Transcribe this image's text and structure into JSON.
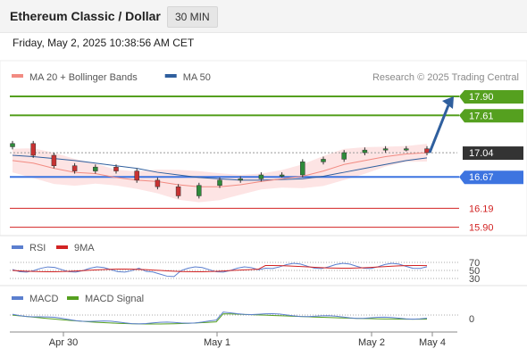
{
  "header": {
    "title": "Ethereum Classic / Dollar",
    "timeframe": "30 MIN",
    "datetime": "Friday, May 2, 2025 10:38:56 AM CET"
  },
  "legend_main": [
    {
      "label": "MA 20 + Bollinger Bands",
      "color": "#f28b82"
    },
    {
      "label": "MA 50",
      "color": "#2f5f9e"
    }
  ],
  "credit": "Research © 2025 Trading Central",
  "legend_rsi": [
    {
      "label": "RSI",
      "color": "#5b7fcf"
    },
    {
      "label": "9MA",
      "color": "#d22323"
    }
  ],
  "legend_macd": [
    {
      "label": "MACD",
      "color": "#5b7fcf"
    },
    {
      "label": "MACD Signal",
      "color": "#55a01f"
    }
  ],
  "rsi_levels": [
    "70",
    "50",
    "30"
  ],
  "macd_zero": "0",
  "x_labels": [
    "Apr 30",
    "May 1",
    "May 2",
    "May 4"
  ],
  "levels": [
    {
      "price": "17.90",
      "kind": "resistance",
      "color": "#55a01f"
    },
    {
      "price": "17.61",
      "kind": "resistance",
      "color": "#55a01f"
    },
    {
      "price": "17.04",
      "kind": "last",
      "color": "#333333"
    },
    {
      "price": "16.67",
      "kind": "pivot",
      "color": "#3d74e0"
    },
    {
      "price": "16.19",
      "kind": "support",
      "color": "#d22323"
    },
    {
      "price": "15.90",
      "kind": "support",
      "color": "#d22323"
    }
  ],
  "colors": {
    "up": "#2e8b3a",
    "down": "#c83232",
    "band_fill": "#fde4e4",
    "arrow": "#2f5f9e"
  },
  "chart_data": {
    "type": "line",
    "title": "Ethereum Classic / Dollar",
    "timeframe": "30 MIN",
    "ylim": [
      15.8,
      18.05
    ],
    "x_ticks": [
      "Apr 30",
      "May 1",
      "May 2",
      "May 4"
    ],
    "series": [
      {
        "name": "MA 20 + Bollinger Bands",
        "values": [
          16.92,
          16.88,
          16.8,
          16.74,
          16.72,
          16.66,
          16.62,
          16.6,
          16.55,
          16.52,
          16.52,
          16.55,
          16.6,
          16.64,
          16.68,
          16.76,
          16.86,
          16.92,
          16.98,
          17.02,
          17.04
        ]
      },
      {
        "name": "MA 50",
        "values": [
          17.0,
          16.98,
          16.95,
          16.92,
          16.88,
          16.84,
          16.8,
          16.74,
          16.7,
          16.66,
          16.64,
          16.62,
          16.62,
          16.63,
          16.64,
          16.68,
          16.74,
          16.8,
          16.86,
          16.92,
          16.96
        ]
      }
    ],
    "close": [
      17.18,
      17.0,
      16.84,
      16.76,
      16.82,
      16.76,
      16.62,
      16.52,
      16.38,
      16.54,
      16.62,
      16.64,
      16.7,
      16.7,
      16.9,
      16.94,
      17.04,
      17.08,
      17.1,
      17.1,
      17.04
    ],
    "last_price": 17.04,
    "levels": {
      "resistance": [
        17.9,
        17.61
      ],
      "pivot": 16.67,
      "support": [
        16.19,
        15.9
      ]
    },
    "forecast": {
      "from": 17.04,
      "to": 17.9,
      "direction": "up"
    },
    "rsi": {
      "levels": [
        70,
        50,
        30
      ]
    },
    "macd": {
      "zero": 0
    }
  }
}
